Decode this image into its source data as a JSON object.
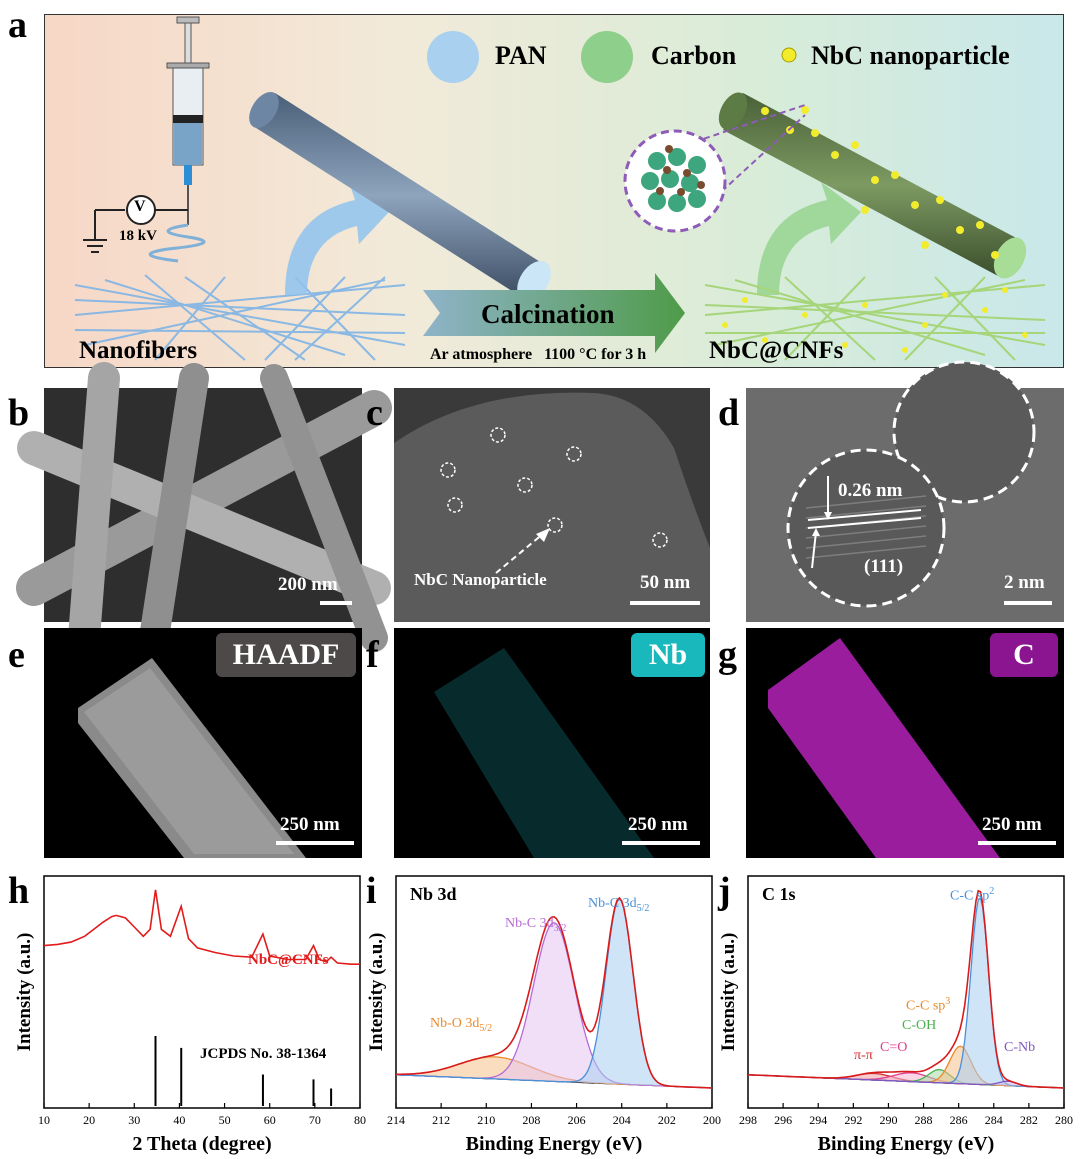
{
  "panels": {
    "a": {
      "letter": "a",
      "legend": [
        "PAN",
        "Carbon",
        "NbC nanoparticle"
      ],
      "voltmeter": "V",
      "voltage": "18 kV",
      "left_label": "Nanofibers",
      "process": "Calcination",
      "conditions": "Ar atmosphere   1100 °C for 3 h",
      "right_label": "NbC@CNFs",
      "colors": {
        "pan": "#a9cdea",
        "carbon": "#8fcf8c",
        "nbc": "#f3ec2c",
        "rod_pan": "#7e95b0",
        "rod_carbon": "#6f8f55"
      }
    },
    "b": {
      "letter": "b",
      "scale": "200 nm"
    },
    "c": {
      "letter": "c",
      "annotation": "NbC Nanoparticle",
      "scale": "50 nm"
    },
    "d": {
      "letter": "d",
      "spacing": "0.26 nm",
      "plane": "(111)",
      "scale": "2 nm"
    },
    "e": {
      "letter": "e",
      "badge": "HAADF",
      "scale": "250 nm",
      "badge_color": "#4d4948"
    },
    "f": {
      "letter": "f",
      "badge": "Nb",
      "scale": "250 nm",
      "badge_color": "#18b8bd"
    },
    "g": {
      "letter": "g",
      "badge": "C",
      "scale": "250 nm",
      "badge_color": "#8b1590"
    },
    "h": {
      "letter": "h",
      "sample": "NbC@CNFs",
      "reference": "JCPDS No. 38-1364"
    },
    "i": {
      "letter": "i",
      "title": "Nb 3d",
      "peaks": [
        "Nb-O 3d",
        "Nb-C 3d",
        "Nb-C 3d"
      ],
      "subs": [
        "5/2",
        "3/2",
        "5/2"
      ]
    },
    "j": {
      "letter": "j",
      "title": "C 1s",
      "peaks": [
        "C-C sp",
        "C-C sp",
        "C-OH",
        "C=O",
        "π-π",
        "C-Nb"
      ],
      "sups": [
        "2",
        "3"
      ]
    }
  },
  "chart_data": [
    {
      "type": "line",
      "panel": "h",
      "xlabel": "2 Theta (degree)",
      "ylabel": "Intensity (a.u.)",
      "xlim": [
        10,
        80
      ],
      "xticks": [
        10,
        20,
        30,
        40,
        50,
        60,
        70,
        80
      ],
      "series": [
        {
          "name": "NbC@CNFs",
          "x": [
            10,
            13,
            16,
            19,
            21,
            23,
            25,
            26,
            28,
            30,
            32,
            33.5,
            34.7,
            36,
            38,
            40.4,
            42,
            44,
            48,
            52,
            56,
            58.5,
            60,
            64,
            68,
            69.7,
            71,
            72.5,
            73.6,
            75,
            78,
            80
          ],
          "y": [
            0.52,
            0.53,
            0.55,
            0.6,
            0.66,
            0.72,
            0.77,
            0.78,
            0.76,
            0.68,
            0.6,
            0.66,
            1.0,
            0.66,
            0.6,
            0.86,
            0.58,
            0.5,
            0.46,
            0.43,
            0.42,
            0.62,
            0.43,
            0.4,
            0.4,
            0.52,
            0.4,
            0.38,
            0.42,
            0.37,
            0.36,
            0.36
          ]
        }
      ],
      "reference_lines": {
        "name": "JCPDS No. 38-1364",
        "x": [
          34.7,
          40.4,
          58.5,
          69.7,
          73.6
        ],
        "height": [
          1.0,
          0.83,
          0.45,
          0.38,
          0.25
        ]
      }
    },
    {
      "type": "line",
      "panel": "i",
      "xlabel": "Binding Energy (eV)",
      "ylabel": "Intensity (a.u.)",
      "xlim": [
        214,
        200
      ],
      "xticks": [
        214,
        212,
        210,
        208,
        206,
        204,
        202,
        200
      ],
      "series": [
        {
          "name": "Nb-O 3d5/2",
          "center": 209.6,
          "height": 0.1,
          "width": 1.6
        },
        {
          "name": "Nb-C 3d3/2",
          "center": 207.0,
          "height": 0.72,
          "width": 0.9
        },
        {
          "name": "Nb-C 3d5/2",
          "center": 204.1,
          "height": 0.84,
          "width": 0.6
        }
      ]
    },
    {
      "type": "line",
      "panel": "j",
      "xlabel": "Binding Energy (eV)",
      "ylabel": "Intensity (a.u.)",
      "xlim": [
        298,
        280
      ],
      "xticks": [
        298,
        296,
        294,
        292,
        290,
        288,
        286,
        284,
        282,
        280
      ],
      "series": [
        {
          "name": "π-π",
          "center": 290.8,
          "height": 0.03,
          "width": 1.0
        },
        {
          "name": "C=O",
          "center": 288.7,
          "height": 0.04,
          "width": 1.0
        },
        {
          "name": "C-OH",
          "center": 287.1,
          "height": 0.06,
          "width": 0.6
        },
        {
          "name": "C-C sp3",
          "center": 285.9,
          "height": 0.17,
          "width": 0.6
        },
        {
          "name": "C-C sp2",
          "center": 284.8,
          "height": 0.85,
          "width": 0.5
        },
        {
          "name": "C-Nb",
          "center": 283.2,
          "height": 0.02,
          "width": 0.5
        }
      ]
    }
  ]
}
